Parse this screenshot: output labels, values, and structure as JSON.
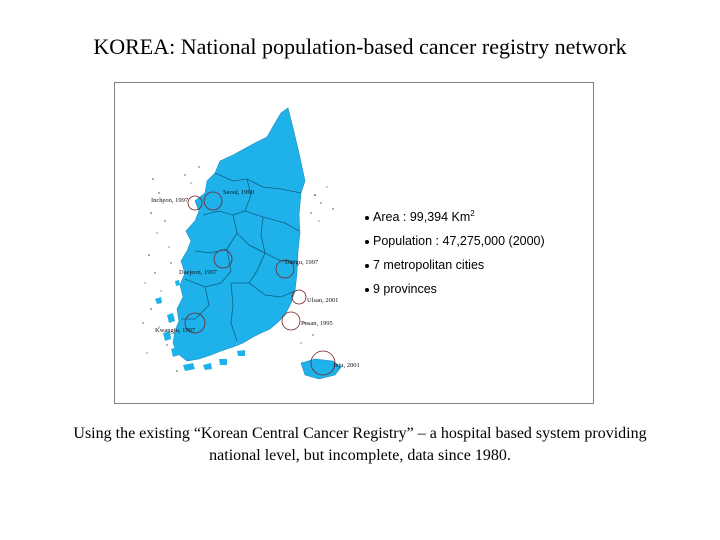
{
  "title": "KOREA: National population-based cancer registry network",
  "map": {
    "fill_color": "#1fb2ea",
    "cities": [
      {
        "label": "Seoul, 1990"
      },
      {
        "label": "Incheon, 1997"
      },
      {
        "label": "Daegu, 1997"
      },
      {
        "label": "Daejeon, 1997"
      },
      {
        "label": "Ulsan, 2001"
      },
      {
        "label": "Pusan, 1995"
      },
      {
        "label": "Kwangju, 1997"
      },
      {
        "label": "Jeju, 2001"
      }
    ]
  },
  "facts": {
    "area": "Area : 99,394 Km",
    "area_unit_exp": "2",
    "population": "Population : 47,275,000 (2000)",
    "metro": "7 metropolitan cities",
    "provinces": "9 provinces"
  },
  "caption": {
    "line1": "Using the existing “Korean Central Cancer Registry” – a hospital based system providing",
    "line2": "national level, but incomplete, data since 1980."
  }
}
